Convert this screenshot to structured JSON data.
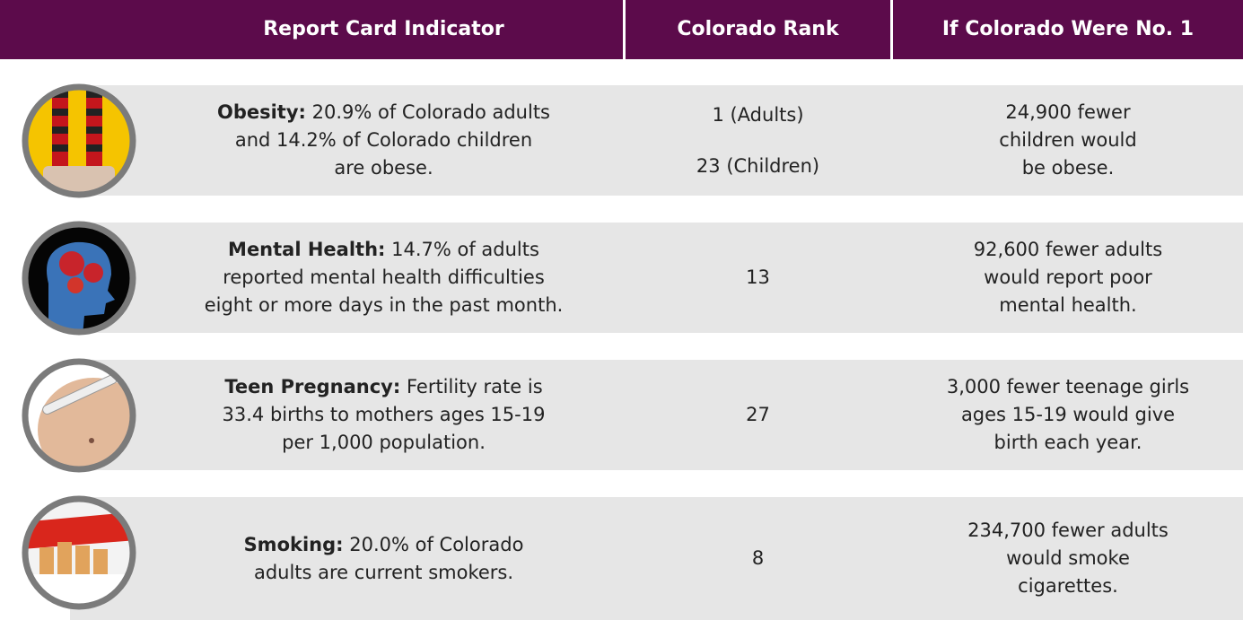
{
  "header": [
    "Report Card Indicator",
    "Colorado Rank",
    "If Colorado Were No. 1"
  ],
  "rows": [
    {
      "label": "Obesity:",
      "indicator": [
        "20.9% of Colorado adults",
        "and 14.2% of Colorado children",
        "are obese."
      ],
      "rank": [
        "1 (Adults)",
        "23 (Children)"
      ],
      "impact": [
        "24,900 fewer",
        "children would",
        "be obese."
      ]
    },
    {
      "label": "Mental Health:",
      "indicator": [
        "14.7% of adults",
        "reported mental health difficulties",
        "eight or more days in the past month."
      ],
      "rank": [
        13
      ],
      "impact": [
        "92,600 fewer adults",
        "would report poor",
        "mental health."
      ]
    },
    {
      "label": "Teen Pregnancy:",
      "indicator": [
        "Fertility rate is",
        "33.4 births to mothers ages 15-19",
        "per 1,000 population."
      ],
      "rank": [
        27
      ],
      "impact": [
        "3,000 fewer teenage girls",
        "ages 15-19 would give",
        "birth each year."
      ]
    },
    {
      "label": "Smoking:",
      "indicator": [
        "20.0% of Colorado",
        "adults are current smokers."
      ],
      "rank": [
        8
      ],
      "impact": [
        "234,700 fewer adults",
        "would smoke",
        "cigarettes."
      ]
    }
  ]
}
